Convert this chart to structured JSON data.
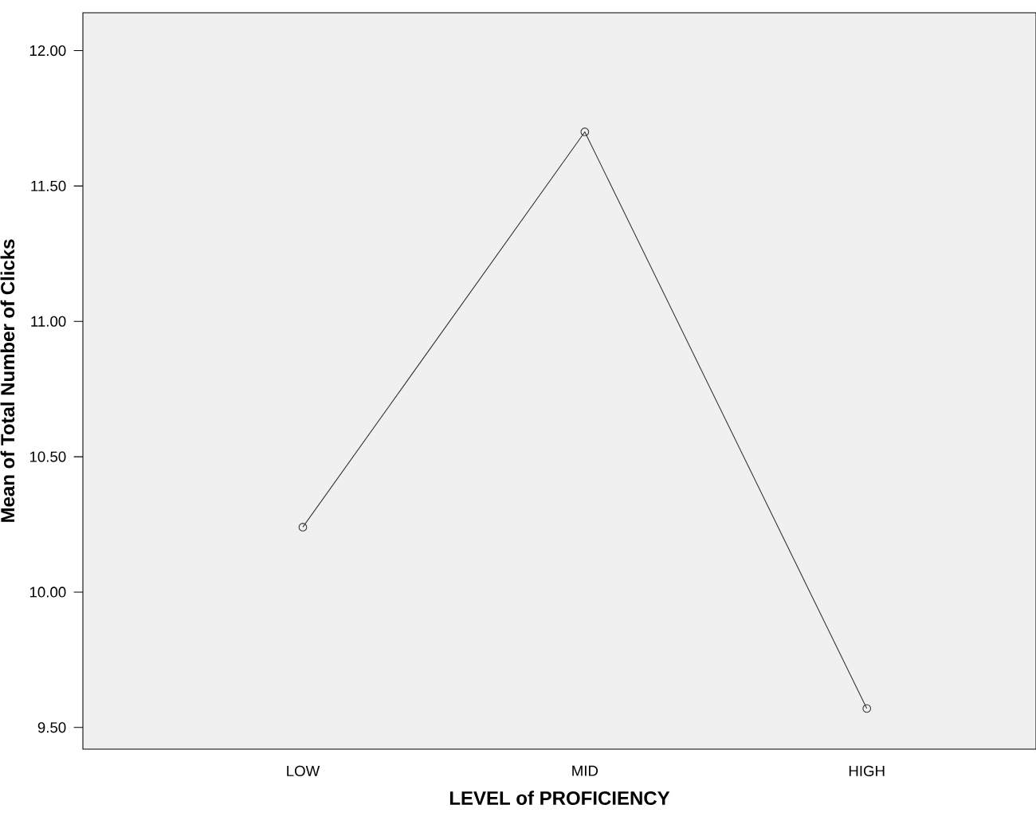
{
  "chart_data": {
    "type": "line",
    "xlabel": "LEVEL of PROFICIENCY",
    "ylabel": "Mean of Total Number of Clicks",
    "categories": [
      "LOW",
      "MID",
      "HIGH"
    ],
    "series": [
      {
        "color": "#333333",
        "values": [
          10.24,
          11.7,
          9.57
        ]
      }
    ],
    "ylim": [
      9.42,
      12.14
    ],
    "yticks": [
      {
        "value": 9.5,
        "label": "9.50"
      },
      {
        "value": 10,
        "label": "10.00"
      },
      {
        "value": 10.5,
        "label": "10.50"
      },
      {
        "value": 11,
        "label": "11.00"
      },
      {
        "value": 11.5,
        "label": "11.50"
      },
      {
        "value": 12,
        "label": "12.00"
      }
    ],
    "marker": "circle",
    "line_style": "solid",
    "grid": false
  }
}
